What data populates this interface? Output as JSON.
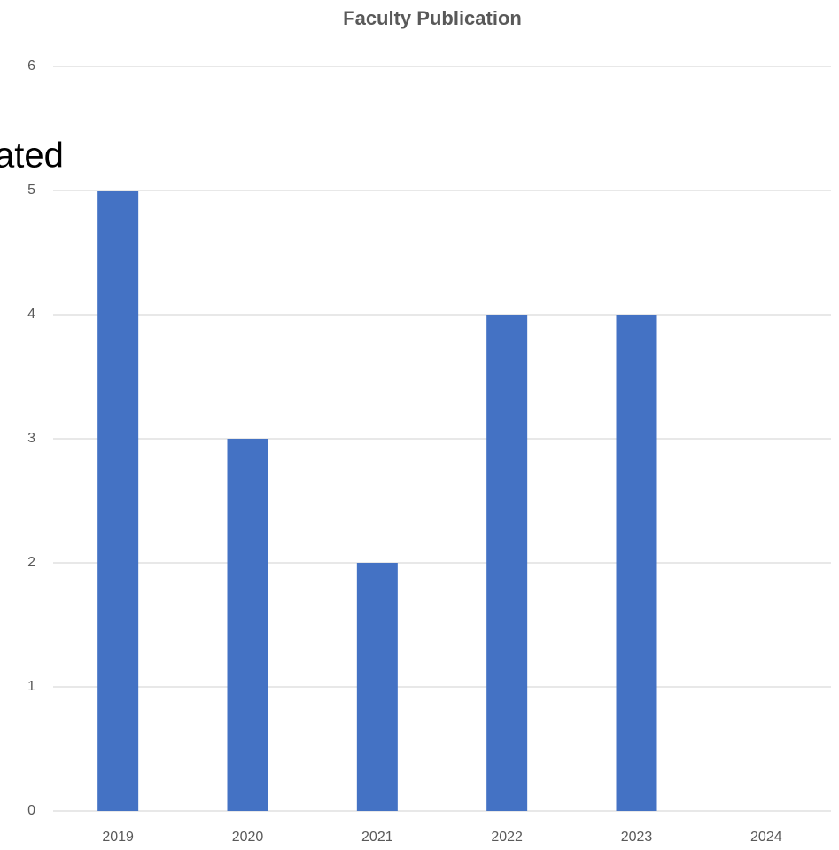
{
  "chart_data": {
    "type": "bar",
    "title": "Faculty Publication",
    "categories": [
      "2019",
      "2020",
      "2021",
      "2022",
      "2023",
      "2024"
    ],
    "values": [
      5,
      3,
      2,
      4,
      4,
      0
    ],
    "color": "#4472c4",
    "ylim": [
      0,
      6
    ],
    "yticks": [
      0,
      1,
      2,
      3,
      4,
      5,
      6
    ],
    "grid": true,
    "annotation": "ated"
  }
}
